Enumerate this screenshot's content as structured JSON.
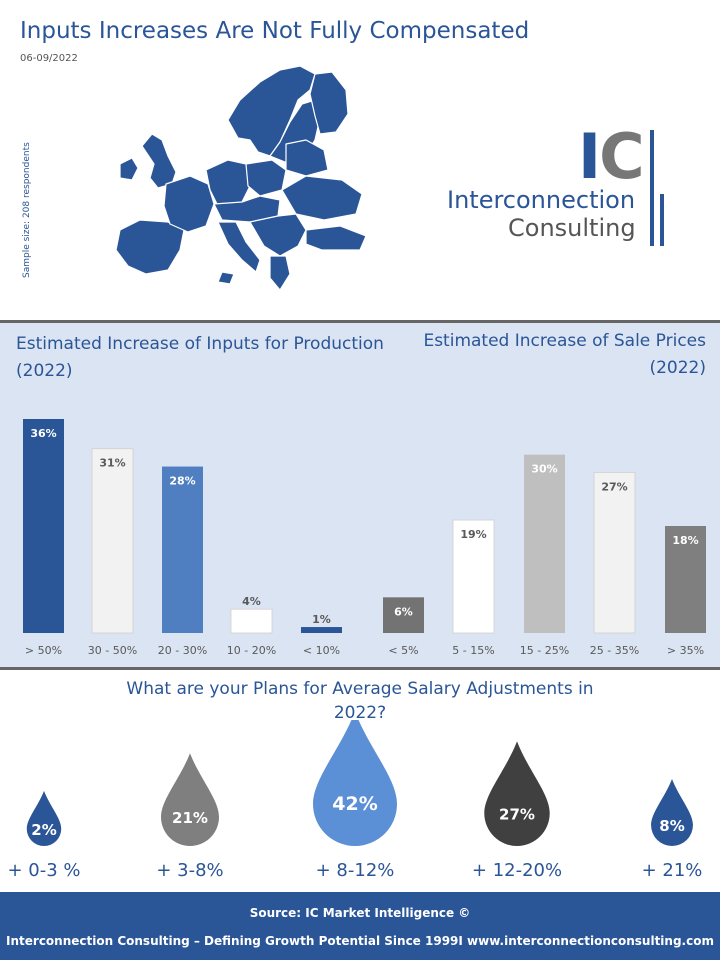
{
  "header": {
    "title": "Inputs Increases Are Not Fully Compensated",
    "date": "06-09/2022",
    "sample_size": "Sample size: 208 respondents"
  },
  "logo": {
    "letter_i": "I",
    "letter_c": "C",
    "line1": "Interconnection",
    "line2": "Consulting"
  },
  "chart_data": [
    {
      "type": "bar",
      "title": "Estimated Increase of Inputs for Production (2022)",
      "categories": [
        "> 50%",
        "30 - 50%",
        "20 - 30%",
        "10 - 20%",
        "< 10%"
      ],
      "values": [
        36,
        31,
        28,
        4,
        1
      ],
      "labels": [
        "36%",
        "31%",
        "28%",
        "4%",
        "1%"
      ],
      "colors": [
        "#2a5597",
        "#f2f2f2",
        "#4f7fc0",
        "#ffffff",
        "#2a5597"
      ],
      "label_colors": [
        "#ffffff",
        "#595959",
        "#ffffff",
        "#595959",
        "#595959"
      ],
      "ylim": [
        0,
        36
      ]
    },
    {
      "type": "bar",
      "title": "Estimated Increase of Sale Prices (2022)",
      "categories": [
        "< 5%",
        "5 - 15%",
        "15 - 25%",
        "25 - 35%",
        "> 35%"
      ],
      "values": [
        6,
        19,
        30,
        27,
        18
      ],
      "labels": [
        "6%",
        "19%",
        "30%",
        "27%",
        "18%"
      ],
      "colors": [
        "#737373",
        "#ffffff",
        "#bfbfbf",
        "#f2f2f2",
        "#7f7f7f"
      ],
      "label_colors": [
        "#ffffff",
        "#595959",
        "#ffffff",
        "#595959",
        "#ffffff"
      ],
      "ylim": [
        0,
        36
      ]
    },
    {
      "type": "bar",
      "title": "What are your Plans for Average Salary Adjustments in 2022?",
      "categories": [
        "+ 0-3 %",
        "+ 3-8%",
        "+ 8-12%",
        "+ 12-20%",
        "+ 21%"
      ],
      "values": [
        2,
        21,
        42,
        27,
        8
      ],
      "labels": [
        "2%",
        "21%",
        "42%",
        "27%",
        "8%"
      ],
      "colors": [
        "#2a5597",
        "#7f7f7f",
        "#5b8fd6",
        "#404040",
        "#2a5597"
      ]
    }
  ],
  "sections": {
    "inputs_title": "Estimated Increase of Inputs for Production (2022)",
    "prices_title": "Estimated Increase of Sale Prices (2022)",
    "salary_title": "What are your Plans for Average Salary Adjustments in 2022?"
  },
  "footer": {
    "source": "Source: IC Market Intelligence ©",
    "tagline": "Interconnection Consulting – Defining Growth Potential Since 1999I  www.interconnectionconsulting.com"
  }
}
